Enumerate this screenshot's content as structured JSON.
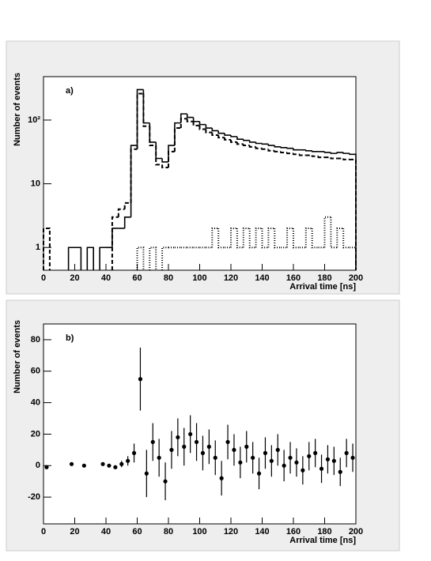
{
  "chart_data": [
    {
      "type": "histogram",
      "label": "a)",
      "ylabel": "Number of events",
      "xlabel": "Arrival time [ns]",
      "log_y": true,
      "bins": [
        0,
        4,
        8,
        12,
        16,
        20,
        24,
        28,
        32,
        36,
        40,
        44,
        48,
        52,
        56,
        60,
        64,
        68,
        72,
        76,
        80,
        84,
        88,
        92,
        96,
        100,
        104,
        108,
        112,
        116,
        120,
        124,
        128,
        132,
        136,
        140,
        144,
        148,
        152,
        156,
        160,
        164,
        168,
        172,
        176,
        180,
        184,
        188,
        192,
        196,
        200
      ],
      "series": [
        {
          "color": "#000000",
          "line_style": "solid",
          "values": [
            null,
            null,
            null,
            null,
            1,
            1,
            null,
            1,
            null,
            1,
            1,
            2,
            2,
            3,
            40,
            300,
            90,
            45,
            25,
            22,
            40,
            90,
            125,
            110,
            95,
            85,
            75,
            68,
            62,
            58,
            55,
            50,
            48,
            45,
            43,
            42,
            40,
            38,
            37,
            36,
            34,
            34,
            33,
            32,
            32,
            31,
            30,
            31,
            30,
            29
          ]
        },
        {
          "color": "#000000",
          "line_style": "dashed",
          "values": [
            2,
            null,
            null,
            null,
            null,
            null,
            null,
            null,
            null,
            null,
            null,
            3,
            4,
            5,
            35,
            260,
            80,
            40,
            20,
            18,
            32,
            75,
            105,
            95,
            82,
            72,
            64,
            58,
            53,
            49,
            45,
            42,
            40,
            38,
            36,
            35,
            33,
            32,
            31,
            30,
            29,
            28,
            28,
            27,
            26,
            26,
            25,
            25,
            24,
            24
          ]
        },
        {
          "color": "#000000",
          "line_style": "dotted",
          "values": [
            null,
            null,
            null,
            null,
            null,
            null,
            null,
            null,
            null,
            null,
            null,
            null,
            null,
            null,
            null,
            1,
            null,
            1,
            null,
            1,
            1,
            1,
            1,
            1,
            1,
            1,
            1,
            2,
            1,
            1,
            2,
            1,
            2,
            1,
            2,
            1,
            2,
            1,
            1,
            2,
            1,
            1,
            2,
            1,
            1,
            3,
            1,
            2,
            1,
            1
          ]
        }
      ],
      "xlim": [
        0,
        200
      ],
      "xticks": [
        0,
        20,
        40,
        60,
        80,
        100,
        120,
        140,
        160,
        180,
        200
      ],
      "ylim": [
        0.44,
        480
      ],
      "yticks": [
        1,
        10,
        {
          "value": 100,
          "label": "10²"
        }
      ]
    },
    {
      "type": "scatter",
      "label": "b)",
      "ylabel": "Number of events",
      "xlabel": "Arrival time [ns]",
      "x": [
        2,
        6,
        10,
        14,
        18,
        22,
        26,
        30,
        34,
        38,
        42,
        46,
        50,
        54,
        58,
        62,
        66,
        70,
        74,
        78,
        82,
        86,
        90,
        94,
        98,
        102,
        106,
        110,
        114,
        118,
        122,
        126,
        130,
        134,
        138,
        142,
        146,
        150,
        154,
        158,
        162,
        166,
        170,
        174,
        178,
        182,
        186,
        190,
        194,
        198
      ],
      "values": [
        -1,
        null,
        null,
        null,
        1,
        null,
        0,
        null,
        null,
        1,
        0,
        -1,
        1,
        3,
        8,
        55,
        -5,
        15,
        5,
        -10,
        10,
        18,
        12,
        20,
        15,
        8,
        12,
        5,
        -8,
        15,
        10,
        2,
        12,
        5,
        -5,
        8,
        3,
        10,
        0,
        5,
        2,
        -3,
        6,
        8,
        -2,
        4,
        3,
        -4,
        8,
        5
      ],
      "errors": [
        1,
        null,
        null,
        null,
        1,
        null,
        1,
        null,
        null,
        1,
        1,
        1,
        2,
        3,
        6,
        20,
        15,
        12,
        12,
        12,
        12,
        12,
        12,
        12,
        12,
        11,
        11,
        11,
        11,
        11,
        10,
        10,
        10,
        10,
        10,
        10,
        10,
        10,
        10,
        10,
        9,
        9,
        9,
        9,
        9,
        9,
        9,
        9,
        9,
        9
      ],
      "color": "#000000",
      "xlim": [
        0,
        200
      ],
      "xticks": [
        0,
        20,
        40,
        60,
        80,
        100,
        120,
        140,
        160,
        180,
        200
      ],
      "ylim": [
        -37,
        90
      ],
      "yticks": [
        -20,
        0,
        20,
        40,
        60,
        80
      ]
    }
  ]
}
